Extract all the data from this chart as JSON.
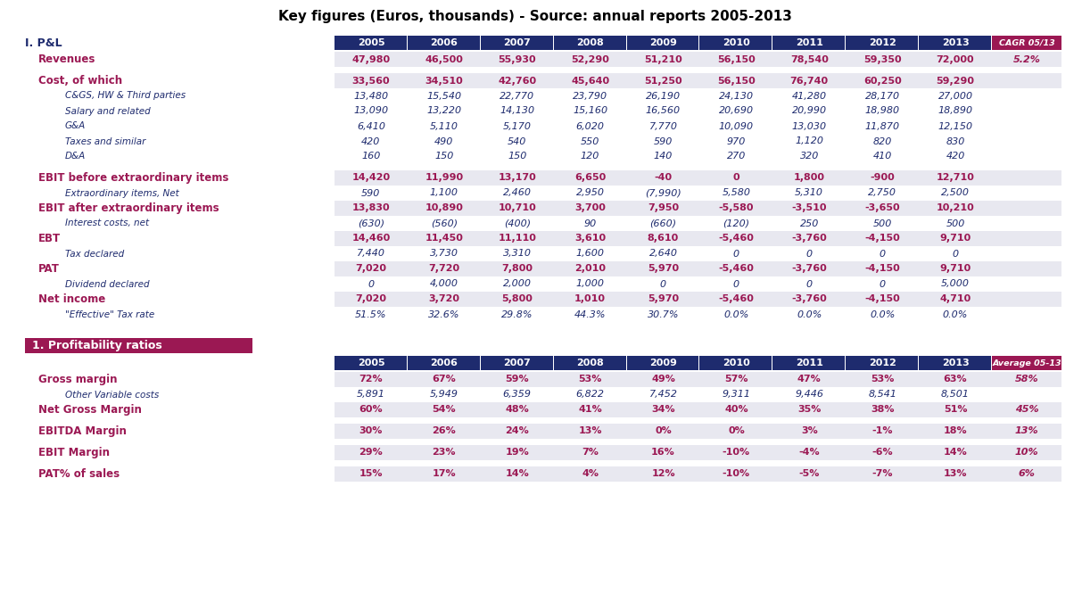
{
  "title": "Key figures (Euros, thousands) - Source: annual reports 2005-2013",
  "header_color": "#1e2b6e",
  "header_last_color": "#9b1853",
  "text_color_blue": "#1e2b6e",
  "text_color_red": "#9b1853",
  "bg_light": "#e8e8f0",
  "years": [
    "2005",
    "2006",
    "2007",
    "2008",
    "2009",
    "2010",
    "2011",
    "2012",
    "2013"
  ],
  "cagr_label": "CAGR 05/13",
  "avg_label": "Average 05-13",
  "section1_label": "I. P&L",
  "section2_label": "1. Profitability ratios",
  "rows_pl": [
    {
      "label": "Revenues",
      "indent": 1,
      "bold": true,
      "italic": false,
      "values": [
        "47,980",
        "46,500",
        "55,930",
        "52,290",
        "51,210",
        "56,150",
        "78,540",
        "59,350",
        "72,000"
      ],
      "last": "5.2%",
      "color": "red"
    },
    {
      "label": "",
      "indent": 0,
      "bold": false,
      "italic": false,
      "values": [],
      "last": "",
      "color": "normal"
    },
    {
      "label": "Cost, of which",
      "indent": 1,
      "bold": true,
      "italic": false,
      "values": [
        "33,560",
        "34,510",
        "42,760",
        "45,640",
        "51,250",
        "56,150",
        "76,740",
        "60,250",
        "59,290"
      ],
      "last": "",
      "color": "red"
    },
    {
      "label": "C&GS, HW & Third parties",
      "indent": 3,
      "bold": false,
      "italic": true,
      "values": [
        "13,480",
        "15,540",
        "22,770",
        "23,790",
        "26,190",
        "24,130",
        "41,280",
        "28,170",
        "27,000"
      ],
      "last": "",
      "color": "normal"
    },
    {
      "label": "Salary and related",
      "indent": 3,
      "bold": false,
      "italic": true,
      "values": [
        "13,090",
        "13,220",
        "14,130",
        "15,160",
        "16,560",
        "20,690",
        "20,990",
        "18,980",
        "18,890"
      ],
      "last": "",
      "color": "normal"
    },
    {
      "label": "G&A",
      "indent": 3,
      "bold": false,
      "italic": true,
      "values": [
        "6,410",
        "5,110",
        "5,170",
        "6,020",
        "7,770",
        "10,090",
        "13,030",
        "11,870",
        "12,150"
      ],
      "last": "",
      "color": "normal"
    },
    {
      "label": "Taxes and similar",
      "indent": 3,
      "bold": false,
      "italic": true,
      "values": [
        "420",
        "490",
        "540",
        "550",
        "590",
        "970",
        "1,120",
        "820",
        "830"
      ],
      "last": "",
      "color": "normal"
    },
    {
      "label": "D&A",
      "indent": 3,
      "bold": false,
      "italic": true,
      "values": [
        "160",
        "150",
        "150",
        "120",
        "140",
        "270",
        "320",
        "410",
        "420"
      ],
      "last": "",
      "color": "normal"
    },
    {
      "label": "",
      "indent": 0,
      "bold": false,
      "italic": false,
      "values": [],
      "last": "",
      "color": "normal"
    },
    {
      "label": "EBIT before extraordinary items",
      "indent": 1,
      "bold": true,
      "italic": false,
      "values": [
        "14,420",
        "11,990",
        "13,170",
        "6,650",
        "-40",
        "0",
        "1,800",
        "-900",
        "12,710"
      ],
      "last": "",
      "color": "red"
    },
    {
      "label": "Extraordinary items, Net",
      "indent": 3,
      "bold": false,
      "italic": true,
      "values": [
        "590",
        "1,100",
        "2,460",
        "2,950",
        "(7,990)",
        "5,580",
        "5,310",
        "2,750",
        "2,500"
      ],
      "last": "",
      "color": "normal"
    },
    {
      "label": "EBIT after extraordinary items",
      "indent": 1,
      "bold": true,
      "italic": false,
      "values": [
        "13,830",
        "10,890",
        "10,710",
        "3,700",
        "7,950",
        "-5,580",
        "-3,510",
        "-3,650",
        "10,210"
      ],
      "last": "",
      "color": "red"
    },
    {
      "label": "Interest costs, net",
      "indent": 3,
      "bold": false,
      "italic": true,
      "values": [
        "(630)",
        "(560)",
        "(400)",
        "90",
        "(660)",
        "(120)",
        "250",
        "500",
        "500"
      ],
      "last": "",
      "color": "normal"
    },
    {
      "label": "EBT",
      "indent": 1,
      "bold": true,
      "italic": false,
      "values": [
        "14,460",
        "11,450",
        "11,110",
        "3,610",
        "8,610",
        "-5,460",
        "-3,760",
        "-4,150",
        "9,710"
      ],
      "last": "",
      "color": "red"
    },
    {
      "label": "Tax declared",
      "indent": 3,
      "bold": false,
      "italic": true,
      "values": [
        "7,440",
        "3,730",
        "3,310",
        "1,600",
        "2,640",
        "0",
        "0",
        "0",
        "0"
      ],
      "last": "",
      "color": "normal"
    },
    {
      "label": "PAT",
      "indent": 1,
      "bold": true,
      "italic": false,
      "values": [
        "7,020",
        "7,720",
        "7,800",
        "2,010",
        "5,970",
        "-5,460",
        "-3,760",
        "-4,150",
        "9,710"
      ],
      "last": "",
      "color": "red"
    },
    {
      "label": "Dividend declared",
      "indent": 3,
      "bold": false,
      "italic": true,
      "values": [
        "0",
        "4,000",
        "2,000",
        "1,000",
        "0",
        "0",
        "0",
        "0",
        "5,000"
      ],
      "last": "",
      "color": "normal"
    },
    {
      "label": "Net income",
      "indent": 1,
      "bold": true,
      "italic": false,
      "values": [
        "7,020",
        "3,720",
        "5,800",
        "1,010",
        "5,970",
        "-5,460",
        "-3,760",
        "-4,150",
        "4,710"
      ],
      "last": "",
      "color": "red"
    },
    {
      "label": "\"Effective\" Tax rate",
      "indent": 3,
      "bold": false,
      "italic": true,
      "values": [
        "51.5%",
        "32.6%",
        "29.8%",
        "44.3%",
        "30.7%",
        "0.0%",
        "0.0%",
        "0.0%",
        "0.0%"
      ],
      "last": "",
      "color": "normal"
    }
  ],
  "rows_ratios": [
    {
      "label": "Gross margin",
      "indent": 1,
      "bold": true,
      "italic": false,
      "values": [
        "72%",
        "67%",
        "59%",
        "53%",
        "49%",
        "57%",
        "47%",
        "53%",
        "63%"
      ],
      "last": "58%",
      "color": "red",
      "shaded": true
    },
    {
      "label": "Other Variable costs",
      "indent": 3,
      "bold": false,
      "italic": true,
      "values": [
        "5,891",
        "5,949",
        "6,359",
        "6,822",
        "7,452",
        "9,311",
        "9,446",
        "8,541",
        "8,501"
      ],
      "last": "",
      "color": "normal",
      "shaded": false
    },
    {
      "label": "Net Gross Margin",
      "indent": 1,
      "bold": true,
      "italic": false,
      "values": [
        "60%",
        "54%",
        "48%",
        "41%",
        "34%",
        "40%",
        "35%",
        "38%",
        "51%"
      ],
      "last": "45%",
      "color": "red",
      "shaded": true
    },
    {
      "label": "",
      "indent": 0,
      "bold": false,
      "italic": false,
      "values": [],
      "last": "",
      "color": "normal",
      "shaded": false
    },
    {
      "label": "EBITDA Margin",
      "indent": 1,
      "bold": true,
      "italic": false,
      "values": [
        "30%",
        "26%",
        "24%",
        "13%",
        "0%",
        "0%",
        "3%",
        "-1%",
        "18%"
      ],
      "last": "13%",
      "color": "red",
      "shaded": true
    },
    {
      "label": "",
      "indent": 0,
      "bold": false,
      "italic": false,
      "values": [],
      "last": "",
      "color": "normal",
      "shaded": false
    },
    {
      "label": "EBIT Margin",
      "indent": 1,
      "bold": true,
      "italic": false,
      "values": [
        "29%",
        "23%",
        "19%",
        "7%",
        "16%",
        "-10%",
        "-4%",
        "-6%",
        "14%"
      ],
      "last": "10%",
      "color": "red",
      "shaded": true
    },
    {
      "label": "",
      "indent": 0,
      "bold": false,
      "italic": false,
      "values": [],
      "last": "",
      "color": "normal",
      "shaded": false
    },
    {
      "label": "PAT% of sales",
      "indent": 1,
      "bold": true,
      "italic": false,
      "values": [
        "15%",
        "17%",
        "14%",
        "4%",
        "12%",
        "-10%",
        "-5%",
        "-7%",
        "13%"
      ],
      "last": "6%",
      "color": "red",
      "shaded": true
    }
  ],
  "shaded_rows_pl": [
    0,
    2,
    9,
    11,
    13,
    15,
    17
  ]
}
